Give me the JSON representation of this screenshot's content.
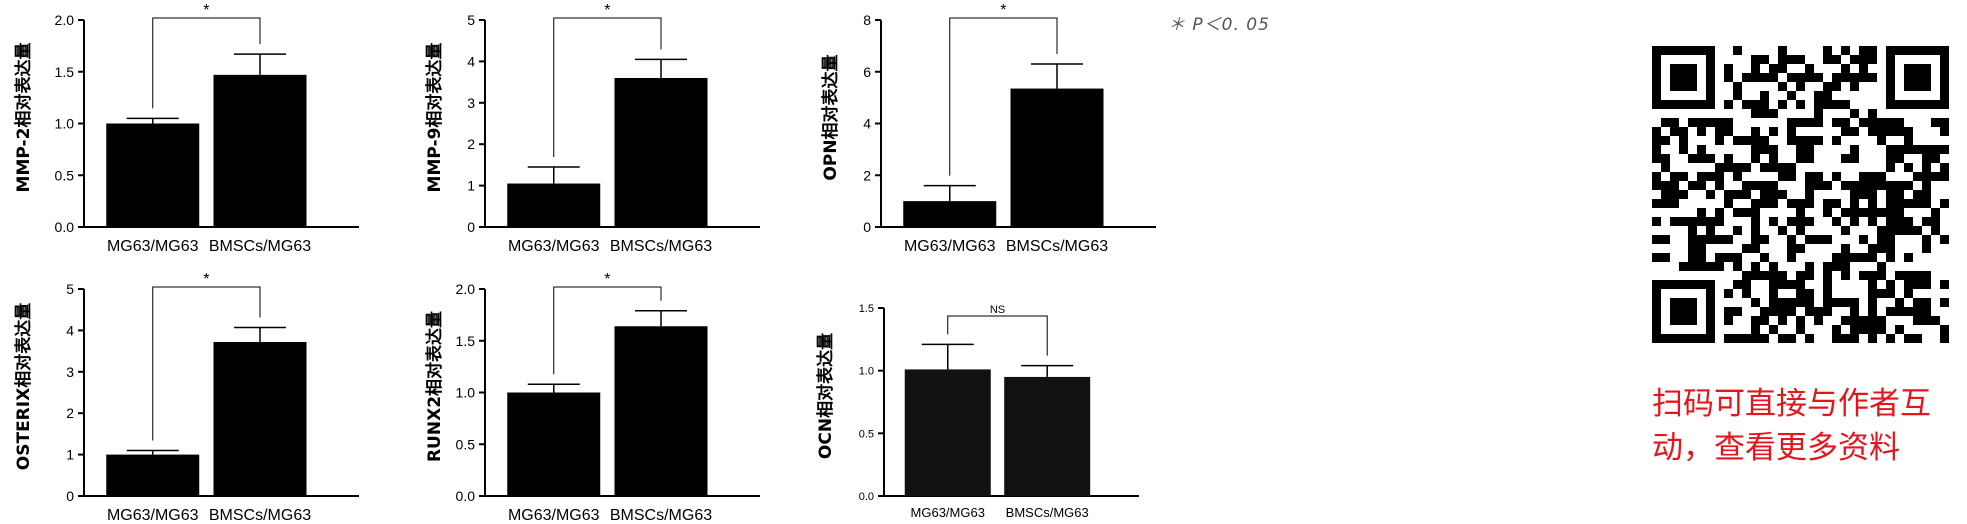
{
  "significance_note": "＊ P＜0. 05",
  "promo": {
    "line1": "扫码可直接与作者互",
    "line2": "动，查看更多资料"
  },
  "qr_icon": "qr-code-icon",
  "bar_color": "#000000",
  "promo_color": "#e4161b",
  "chart_data": [
    {
      "type": "bar",
      "ylabel": "MMP-2相对表达量",
      "categories": [
        "MG63/MG63",
        "BMSCs/MG63"
      ],
      "values": [
        1.0,
        1.47
      ],
      "errors": [
        0.05,
        0.2
      ],
      "ylim": [
        0,
        2.0
      ],
      "yticks": [
        "0.0",
        "0.5",
        "1.0",
        "1.5",
        "2.0"
      ],
      "significance": "*"
    },
    {
      "type": "bar",
      "ylabel": "MMP-9相对表达量",
      "categories": [
        "MG63/MG63",
        "BMSCs/MG63"
      ],
      "values": [
        1.05,
        3.6
      ],
      "errors": [
        0.4,
        0.45
      ],
      "ylim": [
        0,
        5
      ],
      "yticks": [
        "0",
        "1",
        "2",
        "3",
        "4",
        "5"
      ],
      "significance": "*"
    },
    {
      "type": "bar",
      "ylabel": "OPN相对表达量",
      "categories": [
        "MG63/MG63",
        "BMSCs/MG63"
      ],
      "values": [
        1.0,
        5.35
      ],
      "errors": [
        0.6,
        0.95
      ],
      "ylim": [
        0,
        8
      ],
      "yticks": [
        "0",
        "2",
        "4",
        "6",
        "8"
      ],
      "significance": "*"
    },
    {
      "type": "bar",
      "ylabel": "OSTERIX相对表达量",
      "categories": [
        "MG63/MG63",
        "BMSCs/MG63"
      ],
      "values": [
        1.0,
        3.72
      ],
      "errors": [
        0.1,
        0.35
      ],
      "ylim": [
        0,
        5
      ],
      "yticks": [
        "0",
        "1",
        "2",
        "3",
        "4",
        "5"
      ],
      "significance": "*"
    },
    {
      "type": "bar",
      "ylabel": "RUNX2相对表达量",
      "categories": [
        "MG63/MG63",
        "BMSCs/MG63"
      ],
      "values": [
        1.0,
        1.64
      ],
      "errors": [
        0.08,
        0.15
      ],
      "ylim": [
        0,
        2.0
      ],
      "yticks": [
        "0.0",
        "0.5",
        "1.0",
        "1.5",
        "2.0"
      ],
      "significance": "*"
    },
    {
      "type": "bar",
      "ylabel": "OCN相对表达量",
      "categories": [
        "MG63/MG63",
        "BMSCs/MG63"
      ],
      "values": [
        1.01,
        0.95
      ],
      "errors": [
        0.2,
        0.09
      ],
      "ylim": [
        0,
        1.5
      ],
      "yticks": [
        "0.0",
        "0.5",
        "1.0",
        "1.5"
      ],
      "significance": "NS"
    }
  ]
}
